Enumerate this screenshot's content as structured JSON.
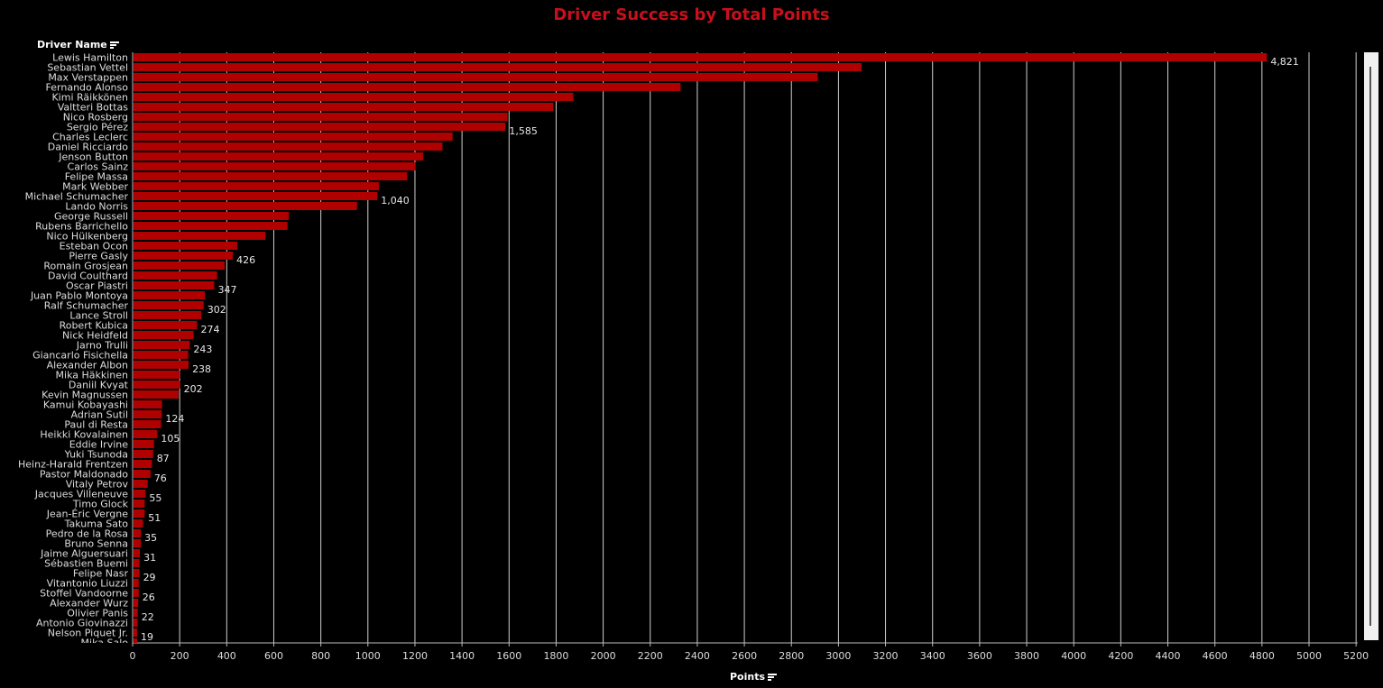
{
  "chart_data": {
    "type": "bar",
    "orientation": "horizontal",
    "title": "Driver Success by Total Points",
    "ylabel": "Driver Name",
    "xlabel": "Points",
    "xlim": [
      0,
      5200
    ],
    "xticks": [
      0,
      200,
      400,
      600,
      800,
      1000,
      1200,
      1400,
      1600,
      1800,
      2000,
      2200,
      2400,
      2600,
      2800,
      3000,
      3200,
      3400,
      3600,
      3800,
      4000,
      4200,
      4400,
      4600,
      4800,
      5000,
      5200
    ],
    "grid": true,
    "bar_color": "#b00000",
    "title_color": "#c8101a",
    "background": "#000000",
    "categories": [
      "Lewis Hamilton",
      "Sebastian Vettel",
      "Max Verstappen",
      "Fernando Alonso",
      "Kimi Räikkönen",
      "Valtteri Bottas",
      "Nico Rosberg",
      "Sergio Pérez",
      "Charles Leclerc",
      "Daniel Ricciardo",
      "Jenson Button",
      "Carlos Sainz",
      "Felipe Massa",
      "Mark Webber",
      "Michael Schumacher",
      "Lando Norris",
      "George Russell",
      "Rubens Barrichello",
      "Nico Hülkenberg",
      "Esteban Ocon",
      "Pierre Gasly",
      "Romain Grosjean",
      "David Coulthard",
      "Oscar Piastri",
      "Juan Pablo Montoya",
      "Ralf Schumacher",
      "Lance Stroll",
      "Robert Kubica",
      "Nick Heidfeld",
      "Jarno Trulli",
      "Giancarlo Fisichella",
      "Alexander Albon",
      "Mika Häkkinen",
      "Daniil Kvyat",
      "Kevin Magnussen",
      "Kamui Kobayashi",
      "Adrian Sutil",
      "Paul di Resta",
      "Heikki Kovalainen",
      "Eddie Irvine",
      "Yuki Tsunoda",
      "Heinz-Harald Frentzen",
      "Pastor Maldonado",
      "Vitaly Petrov",
      "Jacques Villeneuve",
      "Timo Glock",
      "Jean-Éric Vergne",
      "Takuma Sato",
      "Pedro de la Rosa",
      "Bruno Senna",
      "Jaime Alguersuari",
      "Sébastien Buemi",
      "Felipe Nasr",
      "Vitantonio Liuzzi",
      "Stoffel Vandoorne",
      "Alexander Wurz",
      "Olivier Panis",
      "Antonio Giovinazzi",
      "Nelson Piquet Jr.",
      "Mika Salo"
    ],
    "values": [
      4821,
      3098,
      2912,
      2329,
      1873,
      1788,
      1594,
      1585,
      1360,
      1317,
      1235,
      1203,
      1167,
      1047,
      1040,
      954,
      664,
      658,
      565,
      445,
      426,
      391,
      359,
      347,
      307,
      302,
      292,
      274,
      259,
      243,
      236,
      238,
      201,
      202,
      195,
      125,
      124,
      121,
      105,
      91,
      87,
      82,
      76,
      64,
      55,
      51,
      51,
      44,
      35,
      35,
      31,
      29,
      29,
      26,
      26,
      24,
      22,
      21,
      19,
      19
    ],
    "data_labels": [
      {
        "category": "Lewis Hamilton",
        "text": "4,821"
      },
      {
        "category": "Sergio Pérez",
        "text": "1,585"
      },
      {
        "category": "Michael Schumacher",
        "text": "1,040"
      },
      {
        "category": "Pierre Gasly",
        "text": "426"
      },
      {
        "category": "Oscar Piastri",
        "text": "347"
      },
      {
        "category": "Ralf Schumacher",
        "text": "302"
      },
      {
        "category": "Robert Kubica",
        "text": "274"
      },
      {
        "category": "Jarno Trulli",
        "text": "243"
      },
      {
        "category": "Alexander Albon",
        "text": "238"
      },
      {
        "category": "Daniil Kvyat",
        "text": "202"
      },
      {
        "category": "Adrian Sutil",
        "text": "124"
      },
      {
        "category": "Heikki Kovalainen",
        "text": "105"
      },
      {
        "category": "Yuki Tsunoda",
        "text": "87"
      },
      {
        "category": "Pastor Maldonado",
        "text": "76"
      },
      {
        "category": "Jacques Villeneuve",
        "text": "55"
      },
      {
        "category": "Jean-Éric Vergne",
        "text": "51"
      },
      {
        "category": "Pedro de la Rosa",
        "text": "35"
      },
      {
        "category": "Jaime Alguersuari",
        "text": "31"
      },
      {
        "category": "Felipe Nasr",
        "text": "29"
      },
      {
        "category": "Stoffel Vandoorne",
        "text": "26"
      },
      {
        "category": "Olivier Panis",
        "text": "22"
      },
      {
        "category": "Nelson Piquet Jr.",
        "text": "19"
      }
    ]
  }
}
